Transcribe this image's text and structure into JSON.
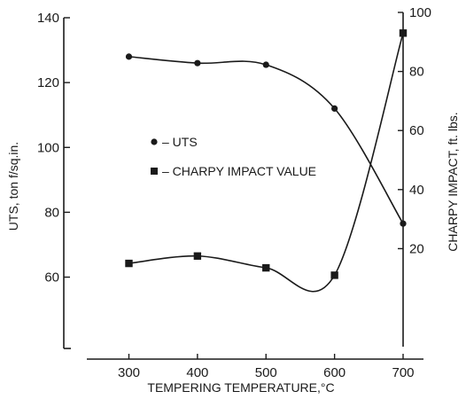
{
  "chart_data": {
    "type": "line",
    "xlabel": "TEMPERING TEMPERATURE,°C",
    "ylabel_left": "UTS, ton f/sq.in.",
    "ylabel_right": "CHARPY IMPACT, ft. lbs.",
    "x": [
      300,
      400,
      500,
      600,
      700
    ],
    "xlim": [
      240,
      720
    ],
    "xticks": [
      300,
      400,
      500,
      600,
      700
    ],
    "ylim_left": [
      38,
      140
    ],
    "yticks_left": [
      60,
      80,
      100,
      120,
      140
    ],
    "ylim_right": [
      -13.2,
      100
    ],
    "yticks_right": [
      20,
      40,
      60,
      80,
      100
    ],
    "grid": false,
    "legend_position": "left-middle",
    "series": [
      {
        "name": "UTS",
        "axis": "left",
        "marker": "circle",
        "values": [
          128,
          126,
          125.5,
          112,
          76.5
        ]
      },
      {
        "name": "CHARPY IMPACT VALUE",
        "axis": "right",
        "marker": "square",
        "values": [
          15,
          17.5,
          13.5,
          11,
          93
        ]
      }
    ],
    "legend": [
      {
        "marker": "circle",
        "label": "– UTS"
      },
      {
        "marker": "square",
        "label": "– CHARPY IMPACT VALUE"
      }
    ]
  }
}
